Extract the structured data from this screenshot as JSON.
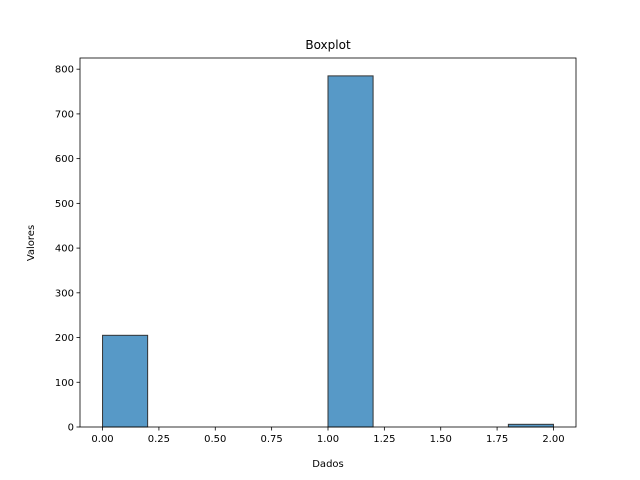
{
  "chart_data": {
    "type": "bar",
    "title": "Boxplot",
    "xlabel": "Dados",
    "ylabel": "Valores",
    "xlim": [
      -0.1,
      2.1
    ],
    "ylim": [
      0,
      825
    ],
    "xticks": [
      0.0,
      0.25,
      0.5,
      0.75,
      1.0,
      1.25,
      1.5,
      1.75,
      2.0
    ],
    "xtick_labels": [
      "0.00",
      "0.25",
      "0.50",
      "0.75",
      "1.00",
      "1.25",
      "1.50",
      "1.75",
      "2.00"
    ],
    "yticks": [
      0,
      100,
      200,
      300,
      400,
      500,
      600,
      700,
      800
    ],
    "ytick_labels": [
      "0",
      "100",
      "200",
      "300",
      "400",
      "500",
      "600",
      "700",
      "800"
    ],
    "grid": false,
    "bars": [
      {
        "x0": 0.0,
        "x1": 0.2,
        "value": 205
      },
      {
        "x0": 1.0,
        "x1": 1.2,
        "value": 785
      },
      {
        "x0": 1.8,
        "x1": 2.0,
        "value": 6
      }
    ],
    "bar_color": "#5799c7",
    "edge_color": "#333333"
  }
}
